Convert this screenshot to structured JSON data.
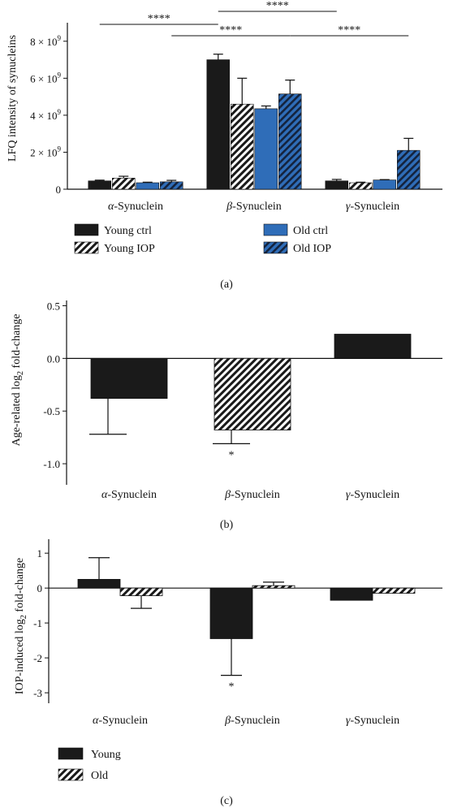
{
  "panels": {
    "a": {
      "label": "(a)",
      "chart_data": {
        "type": "bar",
        "ylabel": "LFQ intensity of synucleins",
        "y_ticks": [
          {
            "value": 0,
            "label": "0"
          },
          {
            "value": 2000000000,
            "label": "2 × 10",
            "exp": "9"
          },
          {
            "value": 4000000000,
            "label": "4 × 10",
            "exp": "9"
          },
          {
            "value": 6000000000,
            "label": "6 × 10",
            "exp": "9"
          },
          {
            "value": 8000000000,
            "label": "8 × 10",
            "exp": "9"
          }
        ],
        "ylim": [
          0,
          9000000000
        ],
        "categories": [
          {
            "greek": "α",
            "rest": "-Synuclein"
          },
          {
            "greek": "β",
            "rest": "-Synuclein"
          },
          {
            "greek": "γ",
            "rest": "-Synuclein"
          }
        ],
        "series": [
          {
            "name": "Young ctrl",
            "style": "solid-black",
            "values": [
              450000000,
              7000000000,
              450000000
            ],
            "errors": [
              40000000,
              300000000,
              80000000
            ]
          },
          {
            "name": "Young IOP",
            "style": "hatch-black",
            "values": [
              600000000,
              4600000000,
              350000000
            ],
            "errors": [
              100000000,
              1400000000,
              30000000
            ]
          },
          {
            "name": "Old ctrl",
            "style": "solid-blue",
            "values": [
              350000000,
              4350000000,
              500000000
            ],
            "errors": [
              30000000,
              150000000,
              20000000
            ]
          },
          {
            "name": "Old IOP",
            "style": "hatch-blue",
            "values": [
              400000000,
              5150000000,
              2100000000
            ],
            "errors": [
              80000000,
              750000000,
              650000000
            ]
          }
        ],
        "significance": [
          {
            "label": "****",
            "from_group": 0,
            "from_bar": 0,
            "to_group": 1,
            "to_bar": 0,
            "tier": 2
          },
          {
            "label": "****",
            "from_group": 1,
            "from_bar": 0,
            "to_group": 2,
            "to_bar": 0,
            "tier": 3
          },
          {
            "label": "****",
            "from_group": 0,
            "from_bar": 3,
            "to_group": 1,
            "to_bar": 3,
            "tier": 1
          },
          {
            "label": "****",
            "from_group": 1,
            "from_bar": 3,
            "to_group": 2,
            "to_bar": 3,
            "tier": 1
          }
        ],
        "colors": {
          "black": "#1a1a1a",
          "blue": "#2f6db8"
        }
      }
    },
    "b": {
      "label": "(b)",
      "chart_data": {
        "type": "bar",
        "ylabel": "Age-related log",
        "ylabel_sub": "2",
        "ylabel_tail": " fold-change",
        "y_ticks": [
          {
            "value": 0.5,
            "label": "0.5"
          },
          {
            "value": 0.0,
            "label": "0.0"
          },
          {
            "value": -0.5,
            "label": "-0.5"
          },
          {
            "value": -1.0,
            "label": "-1.0"
          }
        ],
        "ylim": [
          -1.2,
          0.55
        ],
        "categories": [
          {
            "greek": "α",
            "rest": "-Synuclein"
          },
          {
            "greek": "β",
            "rest": "-Synuclein"
          },
          {
            "greek": "γ",
            "rest": "-Synuclein"
          }
        ],
        "values": [
          -0.38,
          -0.68,
          0.23
        ],
        "errors": [
          0.34,
          0.13,
          0
        ],
        "styles": [
          "solid-black",
          "hatch-black",
          "solid-black"
        ],
        "annotations": [
          {
            "category": 1,
            "text": "*"
          }
        ]
      }
    },
    "c": {
      "label": "(c)",
      "chart_data": {
        "type": "bar",
        "ylabel": "IOP-induced log",
        "ylabel_sub": "2",
        "ylabel_tail": " fold-change",
        "y_ticks": [
          {
            "value": 1,
            "label": "1"
          },
          {
            "value": 0,
            "label": "0"
          },
          {
            "value": -1,
            "label": "-1"
          },
          {
            "value": -2,
            "label": "-2"
          },
          {
            "value": -3,
            "label": "-3"
          }
        ],
        "ylim": [
          -3.3,
          1.4
        ],
        "categories": [
          {
            "greek": "α",
            "rest": "-Synuclein"
          },
          {
            "greek": "β",
            "rest": "-Synuclein"
          },
          {
            "greek": "γ",
            "rest": "-Synuclein"
          }
        ],
        "series": [
          {
            "name": "Young",
            "style": "solid-black",
            "values": [
              0.25,
              -1.45,
              -0.35
            ],
            "errors": [
              0.62,
              1.05,
              0
            ]
          },
          {
            "name": "Old",
            "style": "hatch-black",
            "values": [
              -0.22,
              0.07,
              -0.15
            ],
            "errors": [
              0.36,
              0.1,
              0
            ]
          }
        ],
        "annotations": [
          {
            "category": 1,
            "series": 0,
            "text": "*"
          }
        ]
      }
    }
  }
}
